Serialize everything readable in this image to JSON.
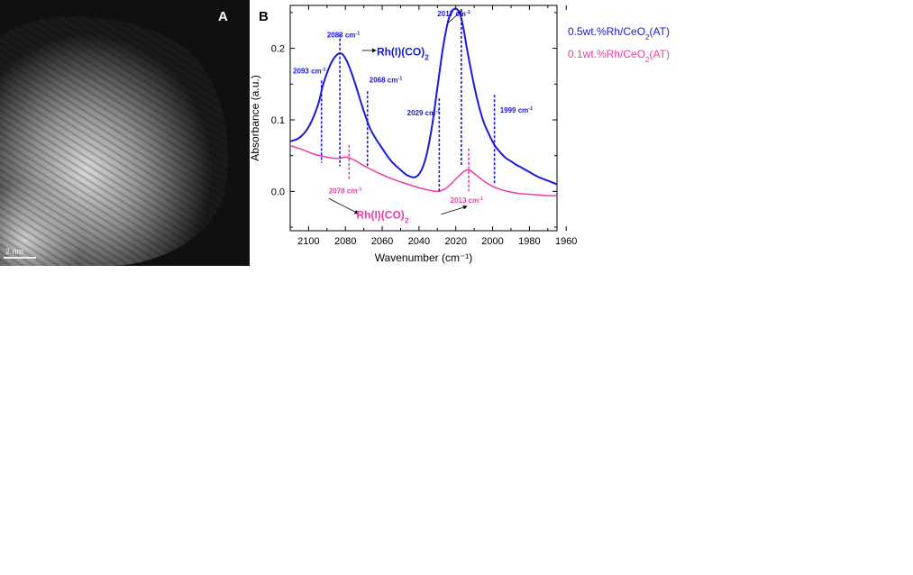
{
  "panel_a": {
    "letter": "A",
    "scale_bar": "2 nm"
  },
  "chart_data": {
    "type": "line",
    "panel_letter": "B",
    "xlabel": "Wavenumber (cm⁻¹)",
    "ylabel": "Absorbance (a.u.)",
    "xlim": [
      2110,
      1965
    ],
    "ylim": [
      -0.055,
      0.26
    ],
    "x_reversed": true,
    "x_ticks": [
      2100,
      2080,
      2060,
      2040,
      2020,
      2000,
      1980,
      1960
    ],
    "y_ticks": [
      0.0,
      0.1,
      0.2
    ],
    "y_tick_labels": [
      "0.0",
      "0.1",
      "0.2"
    ],
    "grid": false,
    "legend_position": "top-right",
    "series": [
      {
        "name": "0.5wt.%Rh/CeO2(AT)",
        "color": "#1a1adb",
        "x": [
          2110,
          2105,
          2100,
          2095,
          2092,
          2088,
          2085,
          2083,
          2081,
          2078,
          2074,
          2070,
          2066,
          2060,
          2055,
          2050,
          2046,
          2042,
          2039,
          2036,
          2033,
          2030,
          2027,
          2024,
          2021,
          2018,
          2016,
          2014,
          2011,
          2008,
          2005,
          2002,
          1999,
          1996,
          1993,
          1990,
          1987,
          1984,
          1980,
          1975,
          1970,
          1965
        ],
        "y": [
          0.07,
          0.075,
          0.09,
          0.12,
          0.15,
          0.178,
          0.19,
          0.193,
          0.19,
          0.175,
          0.145,
          0.112,
          0.085,
          0.06,
          0.042,
          0.03,
          0.022,
          0.02,
          0.028,
          0.05,
          0.09,
          0.145,
          0.2,
          0.24,
          0.255,
          0.25,
          0.23,
          0.2,
          0.16,
          0.125,
          0.098,
          0.08,
          0.065,
          0.055,
          0.047,
          0.042,
          0.037,
          0.033,
          0.027,
          0.02,
          0.015,
          0.01
        ]
      },
      {
        "name": "0.1wt.%Rh/CeO2(AT)",
        "color": "#ee3aa6",
        "x": [
          2110,
          2103,
          2097,
          2092,
          2088,
          2084,
          2082,
          2080,
          2077,
          2074,
          2070,
          2064,
          2058,
          2052,
          2046,
          2040,
          2035,
          2031,
          2028,
          2025,
          2022,
          2019,
          2016,
          2014,
          2012,
          2010,
          2007,
          2004,
          2000,
          1995,
          1990,
          1985,
          1980,
          1975,
          1970,
          1965
        ],
        "y": [
          0.064,
          0.058,
          0.052,
          0.049,
          0.047,
          0.046,
          0.047,
          0.048,
          0.046,
          0.042,
          0.036,
          0.028,
          0.021,
          0.015,
          0.01,
          0.005,
          0.002,
          0.0,
          0.001,
          0.005,
          0.012,
          0.02,
          0.027,
          0.03,
          0.029,
          0.025,
          0.019,
          0.013,
          0.007,
          0.002,
          -0.001,
          -0.003,
          -0.004,
          -0.005,
          -0.006,
          -0.006
        ]
      }
    ],
    "legend": [
      {
        "text": "0.5wt.%Rh/CeO",
        "sub": "2",
        "tail": "(AT)",
        "color": "#1a1adb"
      },
      {
        "text": "0.1wt.%Rh/CeO",
        "sub": "2",
        "tail": "(AT)",
        "color": "#ee3aa6"
      }
    ],
    "peak_markers": [
      {
        "x": 2093,
        "y_top": 0.155,
        "y_bottom": 0.04,
        "color": "#1a1adb"
      },
      {
        "x": 2083,
        "y_top": 0.22,
        "y_bottom": 0.035,
        "color": "#1a1adb"
      },
      {
        "x": 2068,
        "y_top": 0.14,
        "y_bottom": 0.035,
        "color": "#1a1adb"
      },
      {
        "x": 2029,
        "y_top": 0.13,
        "y_bottom": 0.0,
        "color": "#1a1adb"
      },
      {
        "x": 2017,
        "y_top": 0.255,
        "y_bottom": 0.035,
        "color": "#1a1adb"
      },
      {
        "x": 1999,
        "y_top": 0.135,
        "y_bottom": 0.01,
        "color": "#1a1adb"
      },
      {
        "x": 2078,
        "y_top": 0.065,
        "y_bottom": 0.015,
        "color": "#ee3aa6"
      },
      {
        "x": 2013,
        "y_top": 0.06,
        "y_bottom": 0.0,
        "color": "#ee3aa6"
      }
    ],
    "annotations": [
      {
        "text": "2093 cm",
        "sup": "-1",
        "x": 2108.5,
        "y": 0.165,
        "color": "#1a1adb",
        "size": 8,
        "bold": true
      },
      {
        "text": "2083 cm",
        "sup": "-1",
        "x": 2090,
        "y": 0.215,
        "color": "#1a1adb",
        "size": 8,
        "bold": true
      },
      {
        "text": "2068 cm",
        "sup": "-1",
        "x": 2067,
        "y": 0.152,
        "color": "#1a1adb",
        "size": 8,
        "bold": true
      },
      {
        "text": "2029 cm",
        "sup": "-1",
        "x": 2046.5,
        "y": 0.106,
        "color": "#1a1adb",
        "size": 8,
        "bold": true
      },
      {
        "text": "2017 cm",
        "sup": "-1",
        "x": 2030,
        "y": 0.245,
        "color": "#1a1adb",
        "size": 8,
        "bold": true
      },
      {
        "text": "1999 cm",
        "sup": "-1",
        "x": 1996,
        "y": 0.11,
        "color": "#1a1adb",
        "size": 8,
        "bold": true
      },
      {
        "text": "2078 cm",
        "sup": "-1",
        "x": 2089,
        "y": -0.003,
        "color": "#ee3aa6",
        "size": 8,
        "bold": true
      },
      {
        "text": "2013 cm",
        "sup": "-1",
        "x": 2023,
        "y": -0.016,
        "color": "#ee3aa6",
        "size": 8,
        "bold": true
      },
      {
        "text": "Rh(I)(CO)",
        "sub": "2",
        "x": 2063,
        "y": 0.19,
        "color": "#1a1adb",
        "size": 12,
        "bold": true
      },
      {
        "text": "Rh(I)(CO)",
        "sub": "2",
        "x": 2074,
        "y": -0.038,
        "color": "#ee3aa6",
        "size": 12,
        "bold": true
      }
    ],
    "arrows": [
      {
        "x1": 2071,
        "y1": 0.197,
        "x2": 2063.5,
        "y2": 0.197,
        "color": "#000"
      },
      {
        "x1": 2024,
        "y1": 0.236,
        "x2": 2017,
        "y2": 0.252,
        "color": "#000"
      },
      {
        "x1": 2089,
        "y1": -0.01,
        "x2": 2073,
        "y2": -0.031,
        "color": "#000"
      },
      {
        "x1": 2028,
        "y1": -0.032,
        "x2": 2014,
        "y2": -0.021,
        "color": "#000"
      }
    ]
  }
}
